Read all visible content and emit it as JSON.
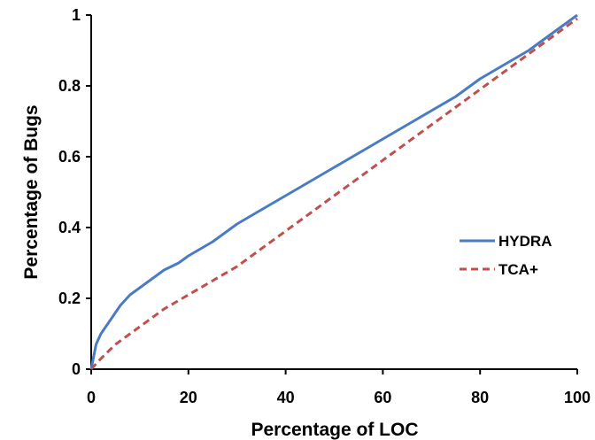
{
  "chart_data": {
    "type": "line",
    "title": "",
    "xlabel": "Percentage of LOC",
    "ylabel": "Percentage of Bugs",
    "xlim": [
      0,
      100
    ],
    "ylim": [
      0,
      1
    ],
    "x_ticks": [
      0,
      20,
      40,
      60,
      80,
      100
    ],
    "y_ticks": [
      0,
      0.2,
      0.4,
      0.6,
      0.8,
      1
    ],
    "x_tick_labels": [
      "0",
      "20",
      "40",
      "60",
      "80",
      "100"
    ],
    "y_tick_labels": [
      "0",
      "0.2",
      "0.4",
      "0.6",
      "0.8",
      "1"
    ],
    "grid": false,
    "legend_position": "right",
    "series": [
      {
        "name": "HYDRA",
        "color": "#4a7cc4",
        "style": "solid",
        "x": [
          0,
          1,
          2,
          4,
          6,
          8,
          10,
          15,
          18,
          20,
          25,
          30,
          35,
          40,
          45,
          50,
          55,
          60,
          65,
          70,
          75,
          80,
          85,
          90,
          95,
          100
        ],
        "y": [
          0,
          0.07,
          0.1,
          0.14,
          0.18,
          0.21,
          0.23,
          0.28,
          0.3,
          0.32,
          0.36,
          0.41,
          0.45,
          0.49,
          0.53,
          0.57,
          0.61,
          0.65,
          0.69,
          0.73,
          0.77,
          0.82,
          0.86,
          0.9,
          0.95,
          1.0
        ]
      },
      {
        "name": "TCA+",
        "color": "#c0504d",
        "style": "dashed",
        "x": [
          0,
          2,
          5,
          10,
          15,
          20,
          25,
          30,
          35,
          40,
          45,
          50,
          55,
          60,
          65,
          70,
          75,
          80,
          85,
          90,
          95,
          100
        ],
        "y": [
          0,
          0.03,
          0.07,
          0.12,
          0.17,
          0.21,
          0.25,
          0.29,
          0.34,
          0.39,
          0.44,
          0.49,
          0.54,
          0.59,
          0.64,
          0.69,
          0.74,
          0.79,
          0.84,
          0.89,
          0.94,
          0.99
        ]
      }
    ]
  }
}
